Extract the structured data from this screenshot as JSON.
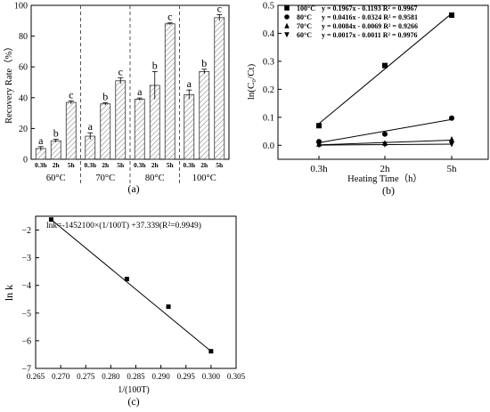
{
  "chart_data": [
    {
      "type": "bar",
      "panel_label": "(a)",
      "ylabel": "Recovery Rate（%）",
      "ylim": [
        0,
        100
      ],
      "yticks": [
        "0",
        "20",
        "40",
        "60",
        "80",
        "100"
      ],
      "group_labels": [
        "60°C",
        "70°C",
        "80°C",
        "100°C"
      ],
      "sub_labels": [
        "0.3h",
        "2h",
        "5h"
      ],
      "groups": [
        {
          "name": "60°C",
          "values": [
            7,
            12,
            37
          ],
          "errors": [
            1.2,
            1.0,
            1.0
          ],
          "letters": [
            "a",
            "b",
            "c"
          ]
        },
        {
          "name": "70°C",
          "values": [
            15,
            36,
            51
          ],
          "errors": [
            2.2,
            0.8,
            2.0
          ],
          "letters": [
            "a",
            "b",
            "c"
          ]
        },
        {
          "name": "80°C",
          "values": [
            39,
            48,
            88
          ],
          "errors": [
            0.8,
            9.0,
            0.6
          ],
          "letters": [
            "a",
            "b",
            "c"
          ]
        },
        {
          "name": "100°C",
          "values": [
            42,
            57,
            92
          ],
          "errors": [
            3.0,
            1.5,
            2.0
          ],
          "letters": [
            "a",
            "b",
            "c"
          ]
        }
      ],
      "grid": false
    },
    {
      "type": "scatter",
      "panel_label": "(b)",
      "ylabel": "ln(C₀/Ct)",
      "xlabel": "Heating Time（h）",
      "categories": [
        "0.3h",
        "2h",
        "5h"
      ],
      "ylim": [
        -0.05,
        0.5
      ],
      "yticks": [
        "0.0",
        "0.1",
        "0.2",
        "0.3",
        "0.4",
        "0.5"
      ],
      "legend_position": "top-left",
      "series": [
        {
          "name": "100°C",
          "equation": "y = 0.1967x - 0.1193 R² = 0.9967",
          "marker": "square",
          "values": [
            0.07,
            0.285,
            0.465
          ],
          "fit": [
            -0.1193,
            0.1967
          ]
        },
        {
          "name": "80°C",
          "equation": "y = 0.0416x - 0.0324 R² = 0.9581",
          "marker": "circle",
          "values": [
            0.013,
            0.04,
            0.097
          ],
          "fit": [
            -0.0324,
            0.0416
          ]
        },
        {
          "name": "70°C",
          "equation": "y = 0.0084x - 0.0069 R² = 0.9266",
          "marker": "triangle-up",
          "values": [
            0.005,
            0.008,
            0.022
          ],
          "fit": [
            -0.0069,
            0.0084
          ]
        },
        {
          "name": "60°C",
          "equation": "y = 0.0017x - 0.0011 R² = 0.9976",
          "marker": "triangle-down",
          "values": [
            0.001,
            0.003,
            0.004
          ],
          "fit": [
            -0.0011,
            0.0017
          ]
        }
      ],
      "grid": false
    },
    {
      "type": "scatter",
      "panel_label": "(c)",
      "ylabel": "ln k",
      "xlabel": "1/(100T)",
      "annotation": "lnk=-1452100×(1/100T) +37.339(R²=0.9949)",
      "xlim": [
        0.265,
        0.305
      ],
      "ylim": [
        -7,
        -1.5
      ],
      "xticks": [
        "0.265",
        "0.270",
        "0.275",
        "0.280",
        "0.285",
        "0.290",
        "0.295",
        "0.300",
        "0.305"
      ],
      "yticks": [
        "−7",
        "−6",
        "−5",
        "−4",
        "−3",
        "−2"
      ],
      "points": [
        {
          "x": 0.2681,
          "y": -1.62
        },
        {
          "x": 0.2832,
          "y": -3.77
        },
        {
          "x": 0.2915,
          "y": -4.77
        },
        {
          "x": 0.3,
          "y": -6.38
        }
      ],
      "fit_line": {
        "x": [
          0.2681,
          0.3
        ],
        "y": [
          -1.62,
          -6.38
        ]
      },
      "grid": false
    }
  ]
}
